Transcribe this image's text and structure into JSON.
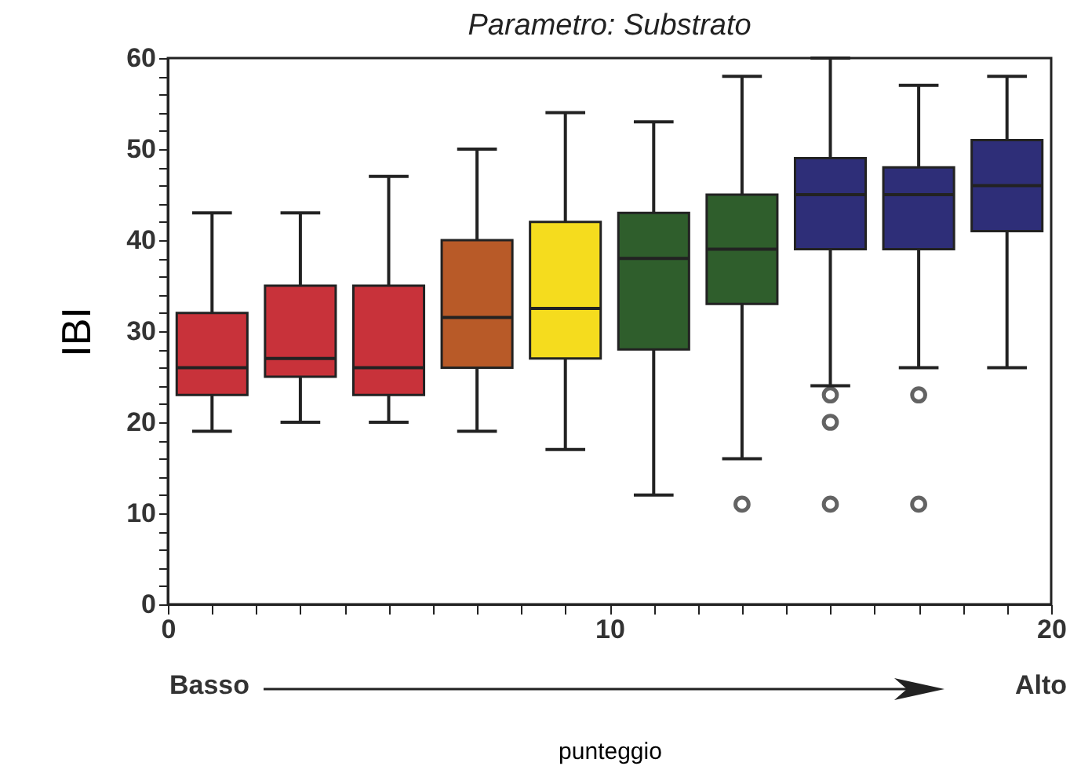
{
  "chart_data": {
    "type": "box",
    "title": "Parametro: Substrato",
    "xlabel": "punteggio",
    "ylabel": "IBI",
    "x": [
      1,
      3,
      5,
      7,
      9,
      11,
      13,
      15,
      17,
      19
    ],
    "boxes": [
      {
        "low": 19,
        "q1": 23,
        "median": 26,
        "q3": 32,
        "high": 43
      },
      {
        "low": 20,
        "q1": 25,
        "median": 27,
        "q3": 35,
        "high": 43
      },
      {
        "low": 20,
        "q1": 23,
        "median": 26,
        "q3": 35,
        "high": 47
      },
      {
        "low": 19,
        "q1": 26,
        "median": 31.5,
        "q3": 40,
        "high": 50
      },
      {
        "low": 17,
        "q1": 27,
        "median": 32.5,
        "q3": 42,
        "high": 54
      },
      {
        "low": 12,
        "q1": 28,
        "median": 38,
        "q3": 43,
        "high": 53
      },
      {
        "low": 16,
        "q1": 33,
        "median": 39,
        "q3": 45,
        "high": 58,
        "outliers": [
          11
        ]
      },
      {
        "low": 24,
        "q1": 39,
        "median": 45,
        "q3": 49,
        "high": 60,
        "outliers": [
          23,
          20,
          11
        ]
      },
      {
        "low": 26,
        "q1": 39,
        "median": 45,
        "q3": 48,
        "high": 57,
        "outliers": [
          23,
          11
        ]
      },
      {
        "low": 26,
        "q1": 41,
        "median": 46,
        "q3": 51,
        "high": 58
      }
    ],
    "colors": [
      "#c8323a",
      "#c8323a",
      "#c8323a",
      "#b85a28",
      "#f5dc1e",
      "#2f5e2c",
      "#2f5e2c",
      "#2e2e78",
      "#2e2e78",
      "#2e2e78"
    ],
    "xlim": [
      0,
      20
    ],
    "xticks": [
      0,
      {
        "value": 1,
        "label": null
      },
      {
        "value": 2,
        "label": null
      },
      {
        "value": 3,
        "label": null
      },
      {
        "value": 4,
        "label": null
      },
      {
        "value": 5,
        "label": null
      },
      {
        "value": 6,
        "label": null
      },
      {
        "value": 7,
        "label": null
      },
      {
        "value": 8,
        "label": null
      },
      {
        "value": 9,
        "label": null
      },
      10,
      {
        "value": 11,
        "label": null
      },
      {
        "value": 12,
        "label": null
      },
      {
        "value": 13,
        "label": null
      },
      {
        "value": 14,
        "label": null
      },
      {
        "value": 15,
        "label": null
      },
      {
        "value": 16,
        "label": null
      },
      {
        "value": 17,
        "label": null
      },
      {
        "value": 18,
        "label": null
      },
      {
        "value": 19,
        "label": null
      },
      20
    ],
    "ylim": [
      0,
      60
    ],
    "yticks": [
      0,
      {
        "value": 2,
        "label": null
      },
      {
        "value": 4,
        "label": null
      },
      {
        "value": 6,
        "label": null
      },
      {
        "value": 8,
        "label": null
      },
      10,
      {
        "value": 12,
        "label": null
      },
      {
        "value": 14,
        "label": null
      },
      {
        "value": 16,
        "label": null
      },
      {
        "value": 18,
        "label": null
      },
      20,
      {
        "value": 22,
        "label": null
      },
      {
        "value": 24,
        "label": null
      },
      {
        "value": 26,
        "label": null
      },
      {
        "value": 28,
        "label": null
      },
      30,
      {
        "value": 32,
        "label": null
      },
      {
        "value": 34,
        "label": null
      },
      {
        "value": 36,
        "label": null
      },
      {
        "value": 38,
        "label": null
      },
      40,
      {
        "value": 42,
        "label": null
      },
      {
        "value": 44,
        "label": null
      },
      {
        "value": 46,
        "label": null
      },
      {
        "value": 48,
        "label": null
      },
      50,
      {
        "value": 52,
        "label": null
      },
      {
        "value": 54,
        "label": null
      },
      {
        "value": 56,
        "label": null
      },
      {
        "value": 58,
        "label": null
      },
      60
    ],
    "annotations": [
      "Basso",
      "Alto"
    ]
  }
}
